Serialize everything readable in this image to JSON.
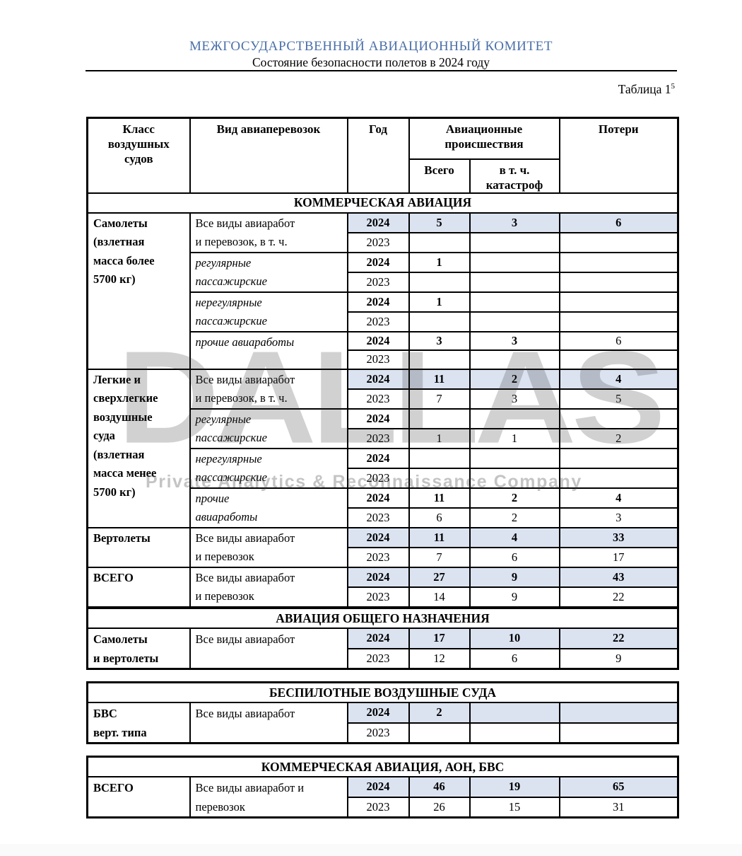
{
  "page": {
    "org_title": "МЕЖГОСУДАРСТВЕННЫЙ АВИАЦИОННЫЙ КОМИТЕТ",
    "doc_subtitle": "Состояние безопасности полетов в 2024 году",
    "table_caption": "Таблица 1",
    "table_caption_superscript": "5"
  },
  "watermark": {
    "text": "DALLAS",
    "tagline": "Private Analytics & Reconnaissance Company"
  },
  "colors": {
    "title_blue": "#4a6fa8",
    "highlight_blue": "#dbe3f1",
    "border_black": "#000000"
  },
  "table_header": {
    "aircraft_class": "Класс\nвоздушных\nсудов",
    "transport_type": "Вид авиаперевозок",
    "year": "Год",
    "accidents_group": "Авиационные\nпроисшествия",
    "accidents_total": "Всего",
    "accidents_fatal": "в т. ч.\nкатастроф",
    "losses": "Потери"
  },
  "tables": [
    {
      "section_title": "КОММЕРЧЕСКАЯ АВИАЦИЯ",
      "rows": [
        [
          {
            "t": "Самолеты\n(взлетная\nмасса более\n5700 кг)",
            "b": 1,
            "left": 1,
            "rs": 8
          },
          {
            "t": "Все виды авиаработ\nи перевозок, в т. ч.",
            "left": 1,
            "rs": 2
          },
          {
            "t": "2024",
            "b": 1,
            "hl": 1
          },
          {
            "t": "5",
            "b": 1,
            "hl": 1
          },
          {
            "t": "3",
            "b": 1,
            "hl": 1
          },
          {
            "t": "6",
            "b": 1,
            "hl": 1
          }
        ],
        [
          {
            "t": "2023"
          },
          {},
          {},
          {}
        ],
        [
          {
            "t": "регулярные\nпассажирские",
            "i": 1,
            "left": 1,
            "rs": 2
          },
          {
            "t": "2024",
            "b": 1
          },
          {
            "t": "1",
            "b": 1
          },
          {},
          {}
        ],
        [
          {
            "t": "2023"
          },
          {},
          {},
          {}
        ],
        [
          {
            "t": "нерегулярные\nпассажирские",
            "i": 1,
            "left": 1,
            "rs": 2
          },
          {
            "t": "2024",
            "b": 1
          },
          {
            "t": "1",
            "b": 1
          },
          {},
          {}
        ],
        [
          {
            "t": "2023"
          },
          {},
          {},
          {}
        ],
        [
          {
            "t": "прочие авиаработы",
            "i": 1,
            "left": 1,
            "rs": 2
          },
          {
            "t": "2024",
            "b": 1
          },
          {
            "t": "3",
            "b": 1
          },
          {
            "t": "3",
            "b": 1
          },
          {
            "t": "6"
          }
        ],
        [
          {
            "t": "2023"
          },
          {},
          {},
          {}
        ],
        [
          {
            "t": "Легкие и\nсверхлегкие\nвоздушные\nсуда\n(взлетная\nмасса менее\n5700 кг)",
            "b": 1,
            "left": 1,
            "rs": 8
          },
          {
            "t": "Все виды авиаработ\nи перевозок, в т. ч.",
            "left": 1,
            "rs": 2
          },
          {
            "t": "2024",
            "b": 1,
            "hl": 1
          },
          {
            "t": "11",
            "b": 1,
            "hl": 1
          },
          {
            "t": "2",
            "b": 1,
            "hl": 1
          },
          {
            "t": "4",
            "b": 1,
            "hl": 1
          }
        ],
        [
          {
            "t": "2023"
          },
          {
            "t": "7"
          },
          {
            "t": "3"
          },
          {
            "t": "5"
          }
        ],
        [
          {
            "t": "регулярные\nпассажирские",
            "i": 1,
            "left": 1,
            "rs": 2
          },
          {
            "t": "2024",
            "b": 1
          },
          {},
          {},
          {}
        ],
        [
          {
            "t": "2023"
          },
          {
            "t": "1"
          },
          {
            "t": "1"
          },
          {
            "t": "2"
          }
        ],
        [
          {
            "t": "нерегулярные\nпассажирские",
            "i": 1,
            "left": 1,
            "rs": 2
          },
          {
            "t": "2024",
            "b": 1
          },
          {},
          {},
          {}
        ],
        [
          {
            "t": "2023"
          },
          {},
          {},
          {}
        ],
        [
          {
            "t": "прочие\nавиаработы",
            "i": 1,
            "left": 1,
            "rs": 2
          },
          {
            "t": "2024",
            "b": 1
          },
          {
            "t": "11",
            "b": 1
          },
          {
            "t": "2",
            "b": 1
          },
          {
            "t": "4",
            "b": 1
          }
        ],
        [
          {
            "t": "2023"
          },
          {
            "t": "6"
          },
          {
            "t": "2"
          },
          {
            "t": "3"
          }
        ],
        [
          {
            "t": "Вертолеты",
            "b": 1,
            "left": 1,
            "rs": 2
          },
          {
            "t": "Все виды авиаработ\nи перевозок",
            "left": 1,
            "rs": 2
          },
          {
            "t": "2024",
            "b": 1,
            "hl": 1
          },
          {
            "t": "11",
            "b": 1,
            "hl": 1
          },
          {
            "t": "4",
            "b": 1,
            "hl": 1
          },
          {
            "t": "33",
            "b": 1,
            "hl": 1
          }
        ],
        [
          {
            "t": "2023"
          },
          {
            "t": "7"
          },
          {
            "t": "6"
          },
          {
            "t": "17"
          }
        ],
        [
          {
            "t": "ВСЕГО",
            "b": 1,
            "left": 1,
            "rs": 2
          },
          {
            "t": "Все виды авиаработ\nи перевозок",
            "left": 1,
            "rs": 2
          },
          {
            "t": "2024",
            "b": 1,
            "hl": 1
          },
          {
            "t": "27",
            "b": 1,
            "hl": 1
          },
          {
            "t": "9",
            "b": 1,
            "hl": 1
          },
          {
            "t": "43",
            "b": 1,
            "hl": 1
          }
        ],
        [
          {
            "t": "2023"
          },
          {
            "t": "14"
          },
          {
            "t": "9"
          },
          {
            "t": "22"
          }
        ]
      ]
    },
    {
      "section_title": "АВИАЦИЯ ОБЩЕГО НАЗНАЧЕНИЯ",
      "rows": [
        [
          {
            "t": "Самолеты\nи вертолеты",
            "b": 1,
            "left": 1,
            "rs": 2
          },
          {
            "t": "Все виды авиаработ",
            "left": 1,
            "rs": 2
          },
          {
            "t": "2024",
            "b": 1,
            "hl": 1
          },
          {
            "t": "17",
            "b": 1,
            "hl": 1
          },
          {
            "t": "10",
            "b": 1,
            "hl": 1
          },
          {
            "t": "22",
            "b": 1,
            "hl": 1
          }
        ],
        [
          {
            "t": "2023"
          },
          {
            "t": "12"
          },
          {
            "t": "6"
          },
          {
            "t": "9"
          }
        ]
      ]
    },
    {
      "section_title": "БЕСПИЛОТНЫЕ ВОЗДУШНЫЕ СУДА",
      "rows": [
        [
          {
            "t": "БВС\nверт. типа",
            "b": 1,
            "left": 1,
            "rs": 2
          },
          {
            "t": "Все виды авиаработ",
            "left": 1,
            "rs": 2
          },
          {
            "t": "2024",
            "b": 1,
            "hl": 1
          },
          {
            "t": "2",
            "b": 1,
            "hl": 1
          },
          {
            "hl": 1
          },
          {
            "hl": 1
          }
        ],
        [
          {
            "t": "2023"
          },
          {},
          {},
          {}
        ]
      ]
    },
    {
      "section_title": "КОММЕРЧЕСКАЯ АВИАЦИЯ, АОН, БВС",
      "rows": [
        [
          {
            "t": "ВСЕГО",
            "b": 1,
            "left": 1,
            "rs": 2
          },
          {
            "t": "Все виды авиаработ и\nперевозок",
            "left": 1,
            "rs": 2
          },
          {
            "t": "2024",
            "b": 1,
            "hl": 1
          },
          {
            "t": "46",
            "b": 1,
            "hl": 1
          },
          {
            "t": "19",
            "b": 1,
            "hl": 1
          },
          {
            "t": "65",
            "b": 1,
            "hl": 1
          }
        ],
        [
          {
            "t": "2023"
          },
          {
            "t": "26"
          },
          {
            "t": "15"
          },
          {
            "t": "31"
          }
        ]
      ]
    }
  ]
}
